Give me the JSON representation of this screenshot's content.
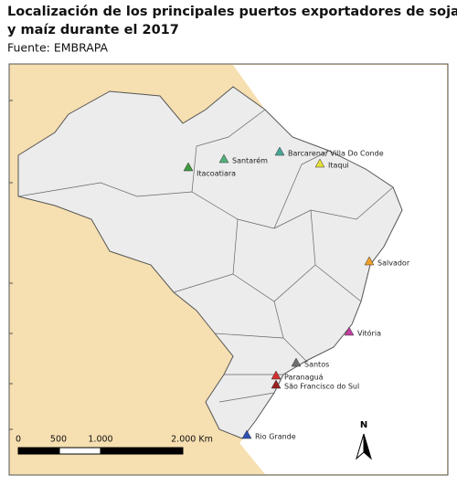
{
  "header": {
    "title_lines": [
      "Localización de los principales puertos exportadores de soja",
      "y maíz durante el 2017"
    ],
    "source": "Fuente: EMBRAPA"
  },
  "ports": [
    {
      "name": "Itacoatiara",
      "color": "#3f9a3f"
    },
    {
      "name": "Santarém",
      "color": "#52b07a"
    },
    {
      "name": "Barcarena/ Villa Do Conde",
      "color": "#47a596"
    },
    {
      "name": "Itaqui",
      "color": "#e6de3c"
    },
    {
      "name": "Salvador",
      "color": "#f0a02a"
    },
    {
      "name": "Vitória",
      "color": "#c2409e"
    },
    {
      "name": "Santos",
      "color": "#6e6e6e"
    },
    {
      "name": "Paranaguá",
      "color": "#d33030"
    },
    {
      "name": "São Francisco do Sul",
      "color": "#9c2020"
    },
    {
      "name": "Rio Grande",
      "color": "#2f50b0"
    }
  ],
  "scale": {
    "labels": [
      "0",
      "500",
      "1.000",
      "2.000 Km"
    ]
  },
  "north": "N"
}
